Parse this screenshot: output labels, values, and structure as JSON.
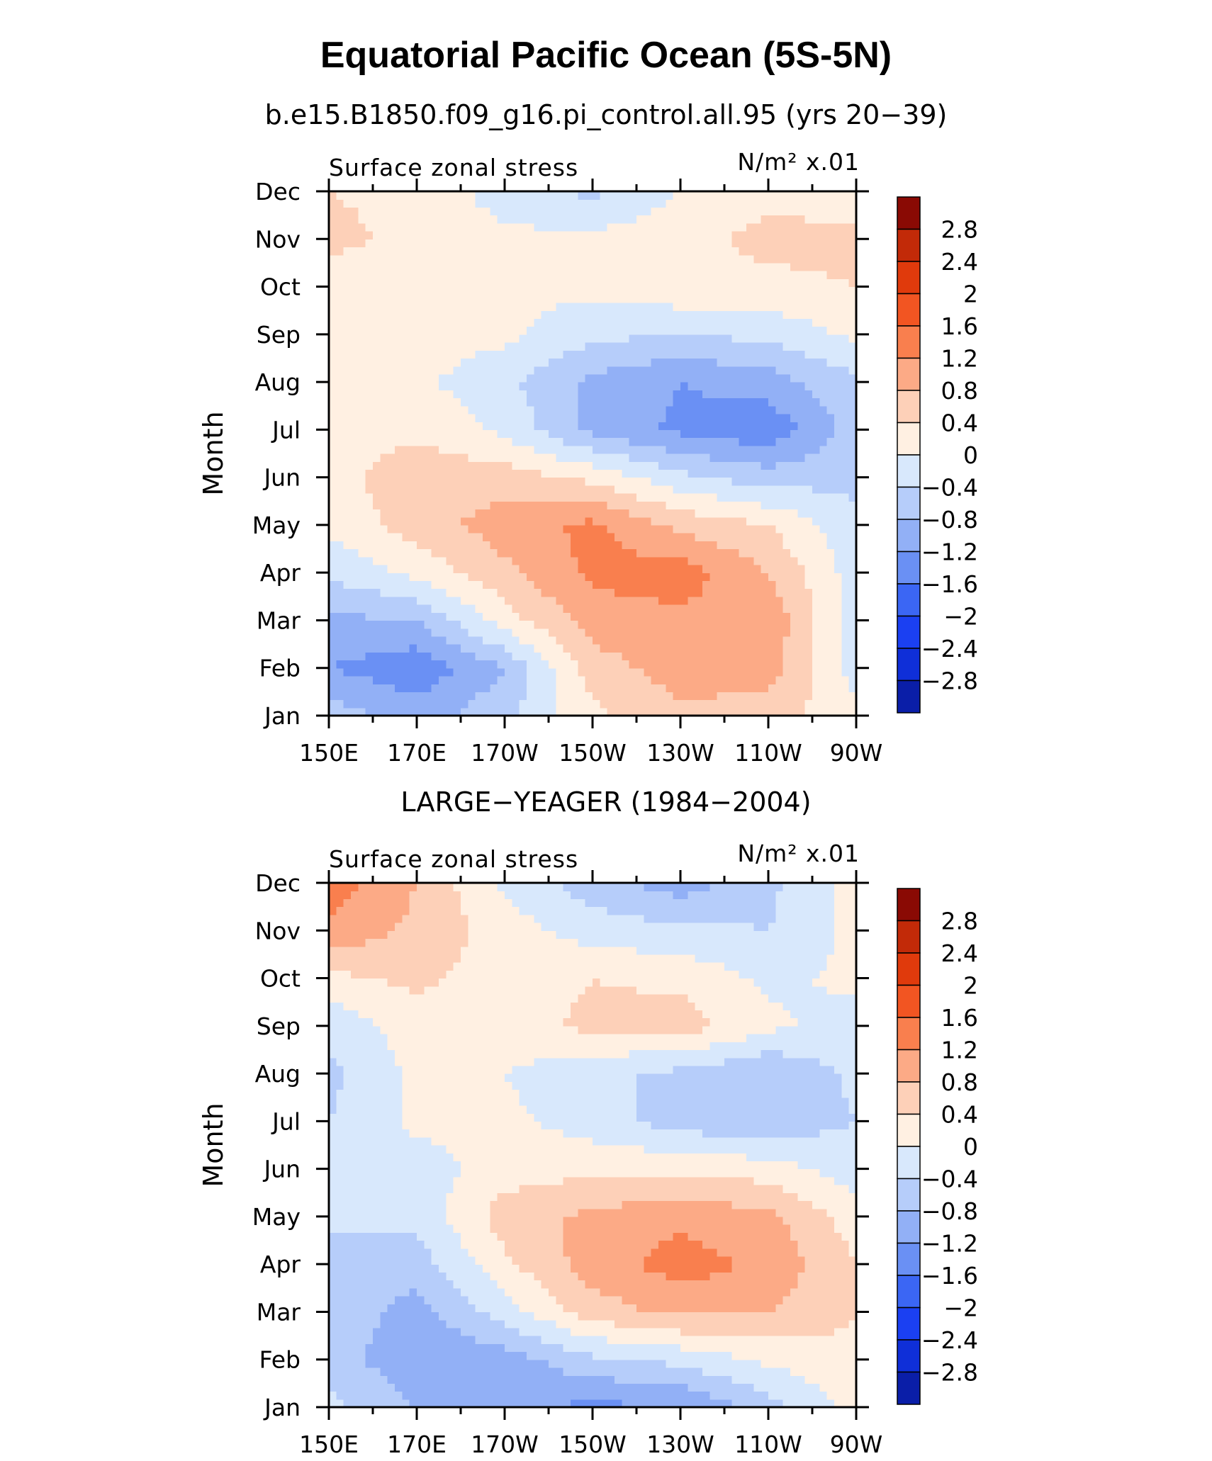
{
  "title": "Equatorial Pacific Ocean (5S-5N)",
  "chart_data": [
    {
      "type": "heatmap",
      "subtitle": "b.e15.B1850.f09_g16.pi_control.all.95 (yrs 20−39)",
      "left_label": "Surface zonal stress",
      "right_label": "N/m² x.01",
      "ylabel": "Month",
      "x_ticks": [
        "150E",
        "170E",
        "170W",
        "150W",
        "130W",
        "110W",
        "90W"
      ],
      "y_ticks": [
        "Jan",
        "Feb",
        "Mar",
        "Apr",
        "May",
        "Jun",
        "Jul",
        "Aug",
        "Sep",
        "Oct",
        "Nov",
        "Dec"
      ],
      "x_range_deg_east": [
        150,
        270
      ],
      "colorbar_labels": [
        "2.8",
        "2.4",
        "2",
        "1.6",
        "1.2",
        "0.8",
        "0.4",
        "0",
        "−0.4",
        "−0.8",
        "−1.2",
        "−1.6",
        "−2",
        "−2.4",
        "−2.8"
      ],
      "z_lon": [
        150,
        170,
        190,
        210,
        230,
        250,
        270
      ],
      "z_values_jan_to_dec": [
        [
          -0.6,
          -1.0,
          -0.5,
          0.3,
          0.7,
          0.6,
          0.1
        ],
        [
          -1.2,
          -1.5,
          -0.8,
          0.6,
          1.0,
          1.0,
          -0.2
        ],
        [
          -0.9,
          -0.8,
          0.2,
          1.0,
          1.1,
          1.1,
          -0.2
        ],
        [
          -0.3,
          0.1,
          0.7,
          1.3,
          1.4,
          0.8,
          -0.2
        ],
        [
          0.1,
          0.6,
          1.0,
          1.3,
          0.7,
          0.4,
          -0.3
        ],
        [
          0.2,
          0.7,
          0.6,
          0.3,
          -0.3,
          -0.6,
          -0.5
        ],
        [
          0.2,
          0.3,
          -0.1,
          -0.9,
          -1.3,
          -1.5,
          -0.6
        ],
        [
          0.1,
          0.1,
          -0.3,
          -0.9,
          -1.2,
          -1.0,
          -0.5
        ],
        [
          0.0,
          0.2,
          0.1,
          -0.3,
          -0.4,
          -0.3,
          0.1
        ],
        [
          0.2,
          0.2,
          0.1,
          0.1,
          0.3,
          0.3,
          0.4
        ],
        [
          0.5,
          0.3,
          0.1,
          0.1,
          0.3,
          0.5,
          0.5
        ],
        [
          0.4,
          0.3,
          -0.2,
          -0.5,
          0.0,
          0.3,
          0.2
        ]
      ]
    },
    {
      "type": "heatmap",
      "subtitle": "LARGE−YEAGER (1984−2004)",
      "left_label": "Surface zonal stress",
      "right_label": "N/m² x.01",
      "ylabel": "Month",
      "x_ticks": [
        "150E",
        "170E",
        "170W",
        "150W",
        "130W",
        "110W",
        "90W"
      ],
      "y_ticks": [
        "Jan",
        "Feb",
        "Mar",
        "Apr",
        "May",
        "Jun",
        "Jul",
        "Aug",
        "Sep",
        "Oct",
        "Nov",
        "Dec"
      ],
      "x_range_deg_east": [
        150,
        270
      ],
      "colorbar_labels": [
        "2.8",
        "2.4",
        "2",
        "1.6",
        "1.2",
        "0.8",
        "0.4",
        "0",
        "−0.4",
        "−0.8",
        "−1.2",
        "−1.6",
        "−2",
        "−2.4",
        "−2.8"
      ],
      "z_lon": [
        150,
        170,
        190,
        210,
        230,
        250,
        270
      ],
      "z_values_jan_to_dec": [
        [
          -0.3,
          -0.8,
          -1.1,
          -1.3,
          -1.2,
          -0.6,
          0.2
        ],
        [
          -0.6,
          -1.1,
          -1.0,
          -0.5,
          -0.3,
          0.1,
          0.3
        ],
        [
          -0.5,
          -1.0,
          -0.2,
          0.6,
          0.9,
          0.8,
          0.4
        ],
        [
          -0.4,
          -0.6,
          0.3,
          1.0,
          1.4,
          1.1,
          0.4
        ],
        [
          -0.4,
          -0.3,
          0.6,
          0.9,
          1.1,
          0.9,
          0.2
        ],
        [
          -0.4,
          -0.2,
          0.2,
          0.3,
          0.3,
          0.2,
          -0.2
        ],
        [
          -0.4,
          0.1,
          0.1,
          -0.2,
          -0.6,
          -0.7,
          -0.4
        ],
        [
          -0.5,
          0.1,
          0.0,
          -0.3,
          -0.5,
          -0.8,
          -0.3
        ],
        [
          -0.3,
          0.2,
          0.2,
          0.5,
          0.6,
          0.1,
          -0.2
        ],
        [
          0.3,
          0.5,
          0.2,
          0.4,
          0.3,
          -0.1,
          0.1
        ],
        [
          1.1,
          0.7,
          0.2,
          -0.2,
          -0.3,
          -0.4,
          0.1
        ],
        [
          1.4,
          0.8,
          -0.1,
          -0.6,
          -1.0,
          -0.5,
          0.2
        ]
      ]
    }
  ]
}
